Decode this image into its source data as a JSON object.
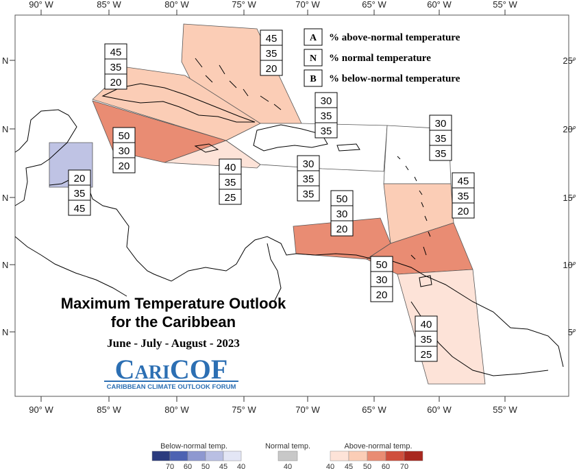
{
  "title_line1": "Maximum Temperature Outlook",
  "title_line2": "for the Caribbean",
  "season": "June - July - August - 2023",
  "brand": {
    "name": "CariCOF",
    "subtitle": "CARIBBEAN CLIMATE OUTLOOK FORUM",
    "color": "#2c6fb3"
  },
  "lon_ticks": [
    "90° W",
    "85° W",
    "80° W",
    "75° W",
    "70° W",
    "65° W",
    "60° W",
    "55° W"
  ],
  "lat_ticks_left": [
    "N",
    "N",
    "N",
    "N",
    "N"
  ],
  "lat_ticks_right": [
    "25°",
    "20°",
    "15°",
    "10°",
    "5°"
  ],
  "key": [
    {
      "letter": "A",
      "text": "% above-normal temperature"
    },
    {
      "letter": "N",
      "text": "% normal temperature"
    },
    {
      "letter": "B",
      "text": "% below-normal temperature"
    }
  ],
  "regions": [
    {
      "id": "bahamas",
      "color": "#fbcdb6",
      "probs": [
        "45",
        "35",
        "20"
      ]
    },
    {
      "id": "cuba",
      "color": "#fbcdb6",
      "probs": [
        "45",
        "35",
        "20"
      ]
    },
    {
      "id": "cayman-jamaica",
      "color": "#e98c73",
      "probs": [
        "50",
        "30",
        "20"
      ]
    },
    {
      "id": "belize",
      "color": "#bfc3e4",
      "probs": [
        "20",
        "35",
        "45"
      ]
    },
    {
      "id": "haiti-south",
      "color": "#fde3d8",
      "probs": [
        "40",
        "35",
        "25"
      ]
    },
    {
      "id": "turks-caicos",
      "color": "#ffffff",
      "probs": [
        "30",
        "35",
        "35"
      ]
    },
    {
      "id": "hispaniola-pr",
      "color": "#ffffff",
      "probs": [
        "30",
        "35",
        "35"
      ]
    },
    {
      "id": "northern-leewards",
      "color": "#ffffff",
      "probs": [
        "30",
        "35",
        "35"
      ]
    },
    {
      "id": "windwards",
      "color": "#fbcdb6",
      "probs": [
        "45",
        "35",
        "20"
      ]
    },
    {
      "id": "abc-islands",
      "color": "#e98c73",
      "probs": [
        "50",
        "30",
        "20"
      ]
    },
    {
      "id": "trinidad",
      "color": "#e98c73",
      "probs": [
        "50",
        "30",
        "20"
      ]
    },
    {
      "id": "guianas",
      "color": "#fde3d8",
      "probs": [
        "40",
        "35",
        "25"
      ]
    }
  ],
  "colorbar": {
    "below_label": "Below-normal temp.",
    "normal_label": "Normal temp.",
    "above_label": "Above-normal temp.",
    "below_colors": [
      "#2b3b7e",
      "#4d62b2",
      "#8e98d0",
      "#b9bfe3",
      "#e3e6f5"
    ],
    "below_ticks": [
      "70",
      "60",
      "50",
      "45",
      "40"
    ],
    "normal_color": "#c8c8c8",
    "normal_tick": "40",
    "above_colors": [
      "#fde3d8",
      "#fbcdb6",
      "#e98c73",
      "#cf4f3d",
      "#a8281f"
    ],
    "above_ticks": [
      "40",
      "45",
      "50",
      "60",
      "70"
    ]
  }
}
